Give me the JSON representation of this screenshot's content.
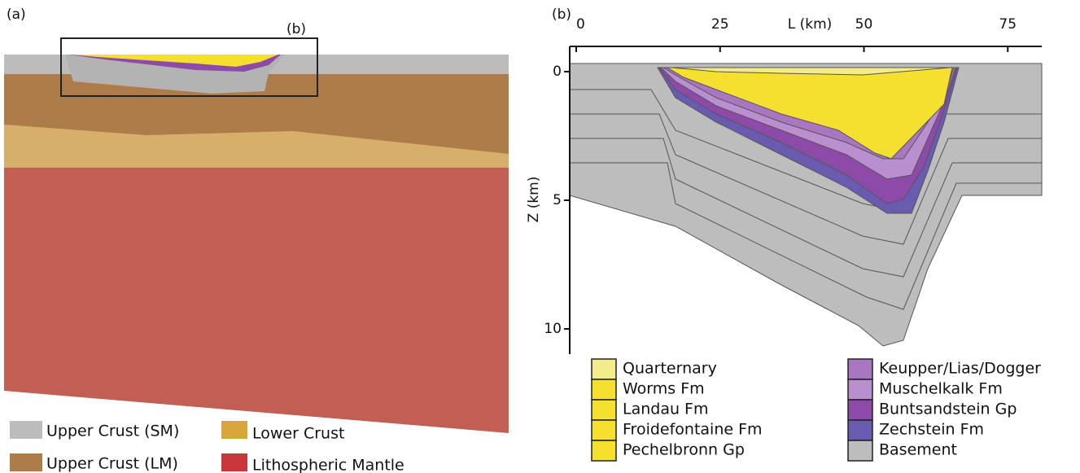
{
  "panel_a": {
    "label": "(a)",
    "inset_label": "(b)",
    "legend": [
      "Upper Crust (SM)",
      "Upper Crust (LM)",
      "Lower Crust",
      "Lithospheric Mantle"
    ]
  },
  "panel_b": {
    "label": "(b)",
    "x_axis": {
      "label": "L (km)",
      "ticks": [
        0,
        25,
        50,
        75
      ]
    },
    "y_axis": {
      "label": "Z (km)",
      "ticks": [
        0,
        5,
        10
      ]
    },
    "legend": [
      "Quarternary",
      "Worms Fm",
      "Landau Fm",
      "Froidefontaine Fm",
      "Pechelbronn Gp",
      "Keupper/Lias/Dogger",
      "Muschelkalk Fm",
      "Buntsandstein Gp",
      "Zechstein Fm",
      "Basement"
    ]
  }
}
